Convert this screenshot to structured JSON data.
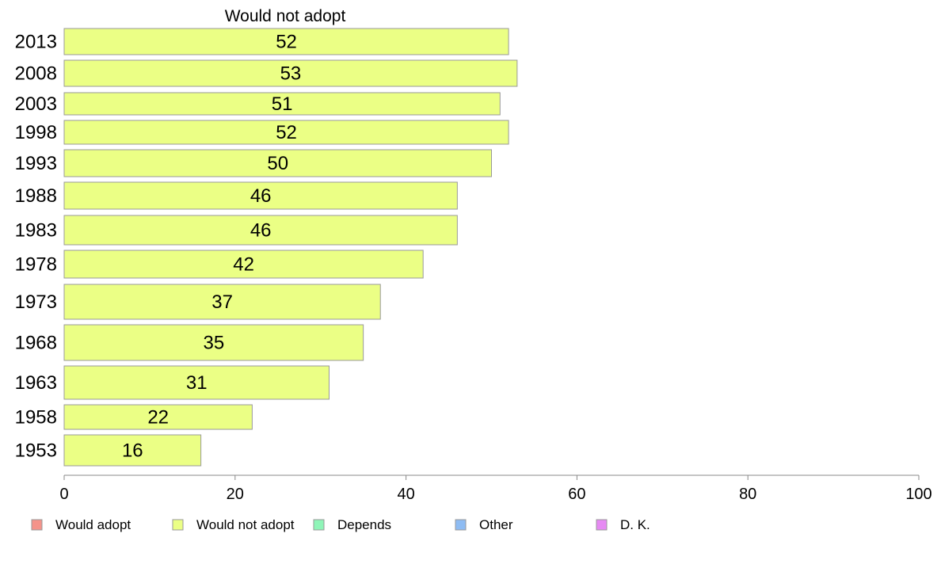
{
  "chart_data": {
    "type": "bar",
    "orientation": "horizontal",
    "title": "Would not adopt",
    "categories": [
      "2013",
      "2008",
      "2003",
      "1998",
      "1993",
      "1988",
      "1983",
      "1978",
      "1973",
      "1968",
      "1963",
      "1958",
      "1953"
    ],
    "series": [
      {
        "name": "Would not adopt",
        "values": [
          52,
          53,
          51,
          52,
          50,
          46,
          46,
          42,
          37,
          35,
          31,
          22,
          16
        ]
      }
    ],
    "data_labels": [
      "52",
      "53",
      "51",
      "52",
      "50",
      "46",
      "46",
      "42",
      "37",
      "35",
      "31",
      "22",
      "16"
    ],
    "xlim": [
      0,
      100
    ],
    "x_ticks": [
      "0",
      "20",
      "40",
      "60",
      "80",
      "100"
    ],
    "grid": false,
    "legend_position": "bottom",
    "legend": [
      {
        "label": "Would adopt",
        "color": "#f4938a"
      },
      {
        "label": "Would not adopt",
        "color": "#ebff85"
      },
      {
        "label": "Depends",
        "color": "#8ff5b8"
      },
      {
        "label": "Other",
        "color": "#8ebcf3"
      },
      {
        "label": "D. K.",
        "color": "#e68af3"
      }
    ],
    "bar_color": "#ebff85",
    "bar_stroke": "#999999"
  }
}
